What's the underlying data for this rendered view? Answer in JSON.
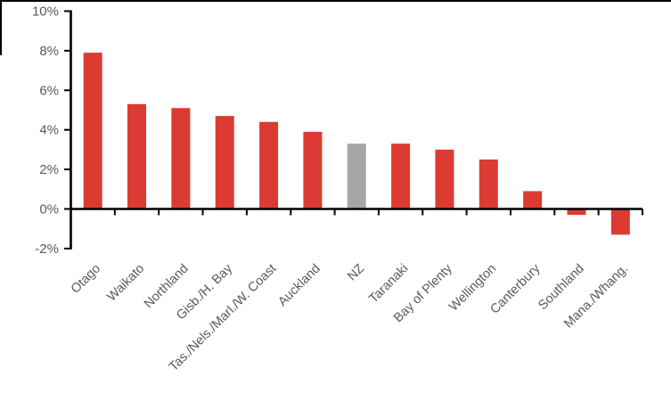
{
  "frame": {
    "top_border_color": "#000000",
    "left_border_color": "#000000"
  },
  "chart_data": {
    "type": "bar",
    "title": "",
    "xlabel": "",
    "ylabel": "",
    "categories": [
      "Otago",
      "Waikato",
      "Northland",
      "Gisb./H. Bay",
      "Tas./Nels./Marl./W. Coast",
      "Auckland",
      "NZ",
      "Taranaki",
      "Bay of Plenty",
      "Wellington",
      "Canterbury",
      "Southland",
      "Mana./Whang."
    ],
    "values": [
      7.9,
      5.3,
      5.1,
      4.7,
      4.4,
      3.9,
      3.3,
      3.3,
      3.0,
      2.5,
      0.9,
      -0.3,
      -1.3
    ],
    "bar_colors": [
      "#DB3B32",
      "#DB3B32",
      "#DB3B32",
      "#DB3B32",
      "#DB3B32",
      "#DB3B32",
      "#A6A6A6",
      "#DB3B32",
      "#DB3B32",
      "#DB3B32",
      "#DB3B32",
      "#DB3B32",
      "#DB3B32"
    ],
    "default_bar_color": "#DB3B32",
    "highlight": {
      "category": "NZ",
      "color": "#A6A6A6"
    },
    "ylim": [
      -2,
      10
    ],
    "ytick_step": 2,
    "ytick_labels": [
      "-2%",
      "0%",
      "2%",
      "4%",
      "6%",
      "8%",
      "10%"
    ],
    "ytick_suffix": "%",
    "grid": false,
    "legend": null,
    "x_label_rotation_deg": 45,
    "axis_color": "#000000",
    "tick_label_color": "#595959"
  }
}
